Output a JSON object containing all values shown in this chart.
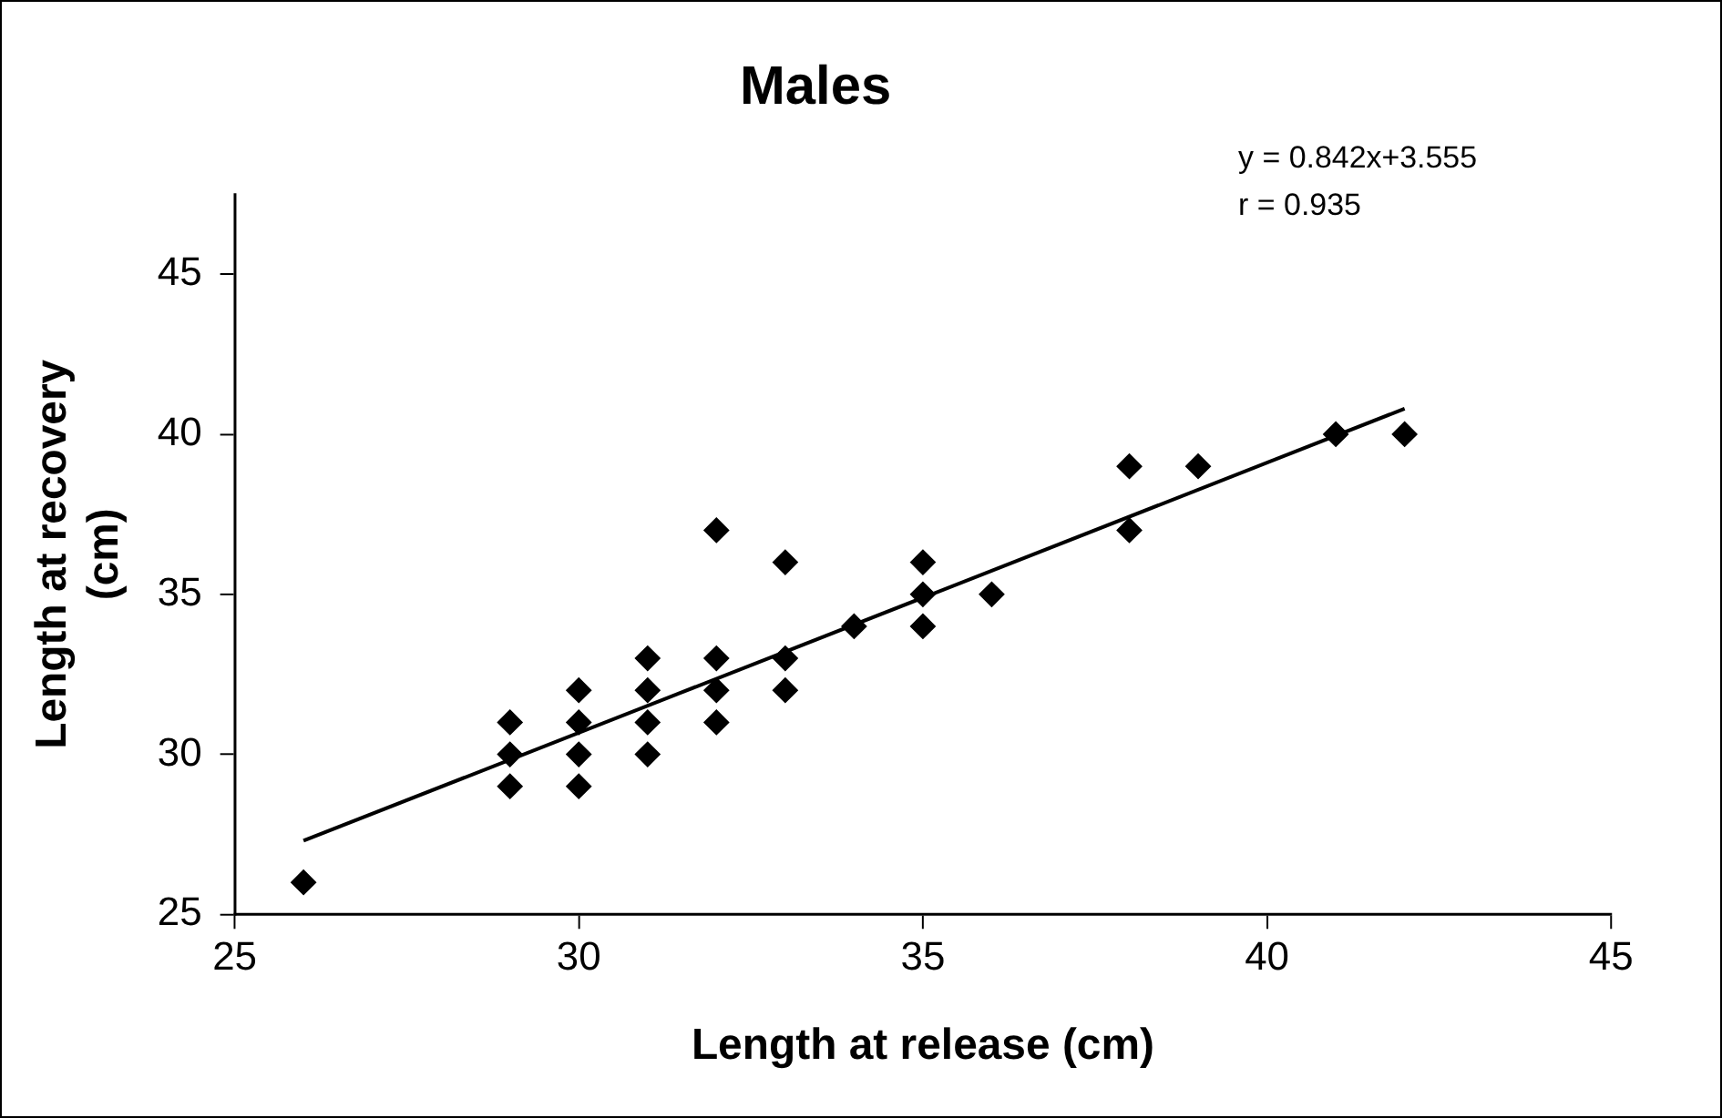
{
  "chart_data": {
    "type": "scatter",
    "title": "Males",
    "xlabel": "Length at release (cm)",
    "ylabel": "Length at recovery (cm)",
    "annotations": [
      "y = 0.842x+3.555",
      "r = 0.935"
    ],
    "xlim": [
      25,
      45
    ],
    "xticks": [
      25,
      30,
      35,
      40,
      45
    ],
    "ylim": [
      25,
      47.5
    ],
    "yticks": [
      25,
      30,
      35,
      40,
      45
    ],
    "grid": false,
    "legend": false,
    "marker": "diamond",
    "series": [
      {
        "color": "#000000",
        "x": [
          26,
          29,
          29,
          29,
          30,
          30,
          30,
          30,
          31,
          31,
          31,
          31,
          32,
          32,
          32,
          32,
          33,
          33,
          33,
          34,
          35,
          35,
          35,
          36,
          38,
          38,
          39,
          41,
          42
        ],
        "values": [
          26,
          31,
          30,
          29,
          32,
          31,
          30,
          29,
          33,
          32,
          31,
          30,
          37,
          33,
          32,
          31,
          36,
          33,
          32,
          34,
          36,
          35,
          34,
          35,
          39,
          37,
          39,
          40,
          40
        ]
      },
      {
        "type": "line",
        "color": "#000000",
        "marker": "none",
        "line_style": "solid",
        "x": [
          26,
          42
        ],
        "values": [
          27.3,
          40.8
        ]
      }
    ]
  }
}
